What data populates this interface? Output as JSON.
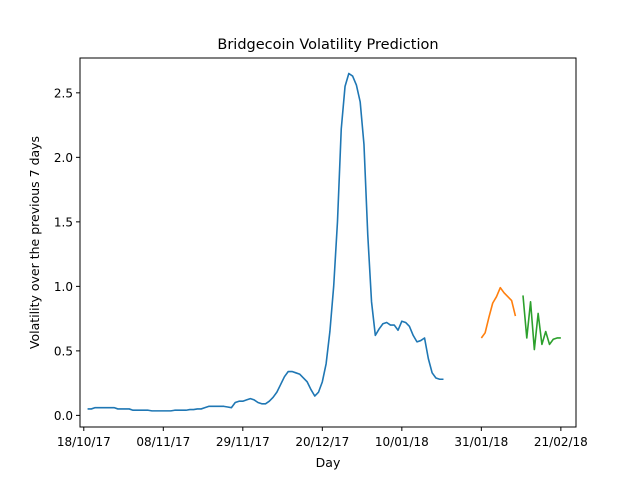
{
  "chart_data": {
    "type": "line",
    "title": "Bridgecoin Volatility Prediction",
    "xlabel": "Day",
    "ylabel": "Volatility over the previous 7 days",
    "x_ticks": [
      {
        "label": "18/10/17",
        "day": 0
      },
      {
        "label": "08/11/17",
        "day": 21
      },
      {
        "label": "29/11/17",
        "day": 42
      },
      {
        "label": "20/12/17",
        "day": 63
      },
      {
        "label": "10/01/18",
        "day": 84
      },
      {
        "label": "31/01/18",
        "day": 105
      },
      {
        "label": "21/02/18",
        "day": 126
      }
    ],
    "y_ticks": [
      0.0,
      0.5,
      1.0,
      1.5,
      2.0,
      2.5
    ],
    "y_tick_labels": [
      "0.0",
      "0.5",
      "1.0",
      "1.5",
      "2.0",
      "2.5"
    ],
    "xlim": [
      -1,
      130
    ],
    "ylim": [
      -0.09,
      2.77
    ],
    "grid": false,
    "series": [
      {
        "color": "#1f77b4",
        "points": [
          [
            1,
            0.05
          ],
          [
            2,
            0.05
          ],
          [
            3,
            0.06
          ],
          [
            4,
            0.06
          ],
          [
            5,
            0.06
          ],
          [
            6,
            0.06
          ],
          [
            7,
            0.06
          ],
          [
            8,
            0.06
          ],
          [
            9,
            0.05
          ],
          [
            10,
            0.05
          ],
          [
            11,
            0.05
          ],
          [
            12,
            0.05
          ],
          [
            13,
            0.04
          ],
          [
            14,
            0.04
          ],
          [
            15,
            0.04
          ],
          [
            16,
            0.04
          ],
          [
            17,
            0.04
          ],
          [
            18,
            0.035
          ],
          [
            19,
            0.035
          ],
          [
            20,
            0.035
          ],
          [
            21,
            0.035
          ],
          [
            22,
            0.035
          ],
          [
            23,
            0.035
          ],
          [
            24,
            0.04
          ],
          [
            25,
            0.04
          ],
          [
            26,
            0.04
          ],
          [
            27,
            0.04
          ],
          [
            28,
            0.045
          ],
          [
            29,
            0.045
          ],
          [
            30,
            0.05
          ],
          [
            31,
            0.05
          ],
          [
            32,
            0.06
          ],
          [
            33,
            0.07
          ],
          [
            34,
            0.07
          ],
          [
            35,
            0.07
          ],
          [
            36,
            0.07
          ],
          [
            37,
            0.07
          ],
          [
            38,
            0.065
          ],
          [
            39,
            0.06
          ],
          [
            40,
            0.1
          ],
          [
            41,
            0.11
          ],
          [
            42,
            0.11
          ],
          [
            43,
            0.12
          ],
          [
            44,
            0.13
          ],
          [
            45,
            0.12
          ],
          [
            46,
            0.1
          ],
          [
            47,
            0.09
          ],
          [
            48,
            0.09
          ],
          [
            49,
            0.11
          ],
          [
            50,
            0.14
          ],
          [
            51,
            0.18
          ],
          [
            52,
            0.24
          ],
          [
            53,
            0.3
          ],
          [
            54,
            0.34
          ],
          [
            55,
            0.34
          ],
          [
            56,
            0.33
          ],
          [
            57,
            0.32
          ],
          [
            58,
            0.29
          ],
          [
            59,
            0.26
          ],
          [
            60,
            0.2
          ],
          [
            61,
            0.15
          ],
          [
            62,
            0.18
          ],
          [
            63,
            0.26
          ],
          [
            64,
            0.4
          ],
          [
            65,
            0.65
          ],
          [
            66,
            1.0
          ],
          [
            67,
            1.5
          ],
          [
            68,
            2.22
          ],
          [
            69,
            2.55
          ],
          [
            70,
            2.65
          ],
          [
            71,
            2.63
          ],
          [
            72,
            2.56
          ],
          [
            73,
            2.43
          ],
          [
            74,
            2.1
          ],
          [
            75,
            1.4
          ],
          [
            76,
            0.88
          ],
          [
            77,
            0.62
          ],
          [
            78,
            0.67
          ],
          [
            79,
            0.71
          ],
          [
            80,
            0.72
          ],
          [
            81,
            0.7
          ],
          [
            82,
            0.7
          ],
          [
            83,
            0.66
          ],
          [
            84,
            0.73
          ],
          [
            85,
            0.72
          ],
          [
            86,
            0.69
          ],
          [
            87,
            0.62
          ],
          [
            88,
            0.57
          ],
          [
            89,
            0.58
          ],
          [
            90,
            0.6
          ],
          [
            91,
            0.44
          ],
          [
            92,
            0.33
          ],
          [
            93,
            0.29
          ],
          [
            94,
            0.28
          ],
          [
            95,
            0.28
          ]
        ]
      },
      {
        "color": "#ff7f0e",
        "points": [
          [
            105,
            0.6
          ],
          [
            106,
            0.64
          ],
          [
            107,
            0.76
          ],
          [
            108,
            0.87
          ],
          [
            109,
            0.92
          ],
          [
            110,
            0.99
          ],
          [
            111,
            0.95
          ],
          [
            112,
            0.92
          ],
          [
            113,
            0.89
          ],
          [
            114,
            0.77
          ]
        ]
      },
      {
        "color": "#2ca02c",
        "points": [
          [
            116,
            0.93
          ],
          [
            117,
            0.6
          ],
          [
            118,
            0.88
          ],
          [
            119,
            0.51
          ],
          [
            120,
            0.79
          ],
          [
            121,
            0.55
          ],
          [
            122,
            0.65
          ],
          [
            123,
            0.55
          ],
          [
            124,
            0.59
          ],
          [
            125,
            0.6
          ],
          [
            126,
            0.6
          ]
        ]
      }
    ]
  }
}
